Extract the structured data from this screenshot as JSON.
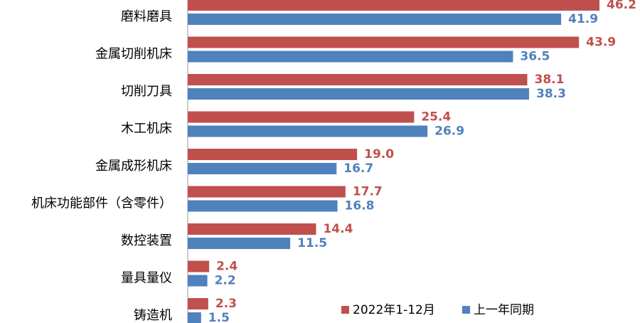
{
  "chart_data": {
    "type": "bar",
    "orientation": "horizontal",
    "categories": [
      "磨料磨具",
      "金属切削机床",
      "切削刀具",
      "木工机床",
      "金属成形机床",
      "机床功能部件（含零件）",
      "数控装置",
      "量具量仪",
      "铸造机"
    ],
    "series": [
      {
        "name": "2022年1-12月",
        "color": "#c0504d",
        "values": [
          46.2,
          43.9,
          38.1,
          25.4,
          19.0,
          17.7,
          14.4,
          2.4,
          2.3
        ],
        "value_labels": [
          "46.2",
          "43.9",
          "38.1",
          "25.4",
          "19.0",
          "17.7",
          "14.4",
          "2.4",
          "2.3"
        ]
      },
      {
        "name": "上一年同期",
        "color": "#4f81bd",
        "values": [
          41.9,
          36.5,
          38.3,
          26.9,
          16.7,
          16.8,
          11.5,
          2.2,
          1.5
        ],
        "value_labels": [
          "41.9",
          "36.5",
          "38.3",
          "26.9",
          "16.7",
          "16.8",
          "11.5",
          "2.2",
          "1.5"
        ]
      }
    ]
  }
}
